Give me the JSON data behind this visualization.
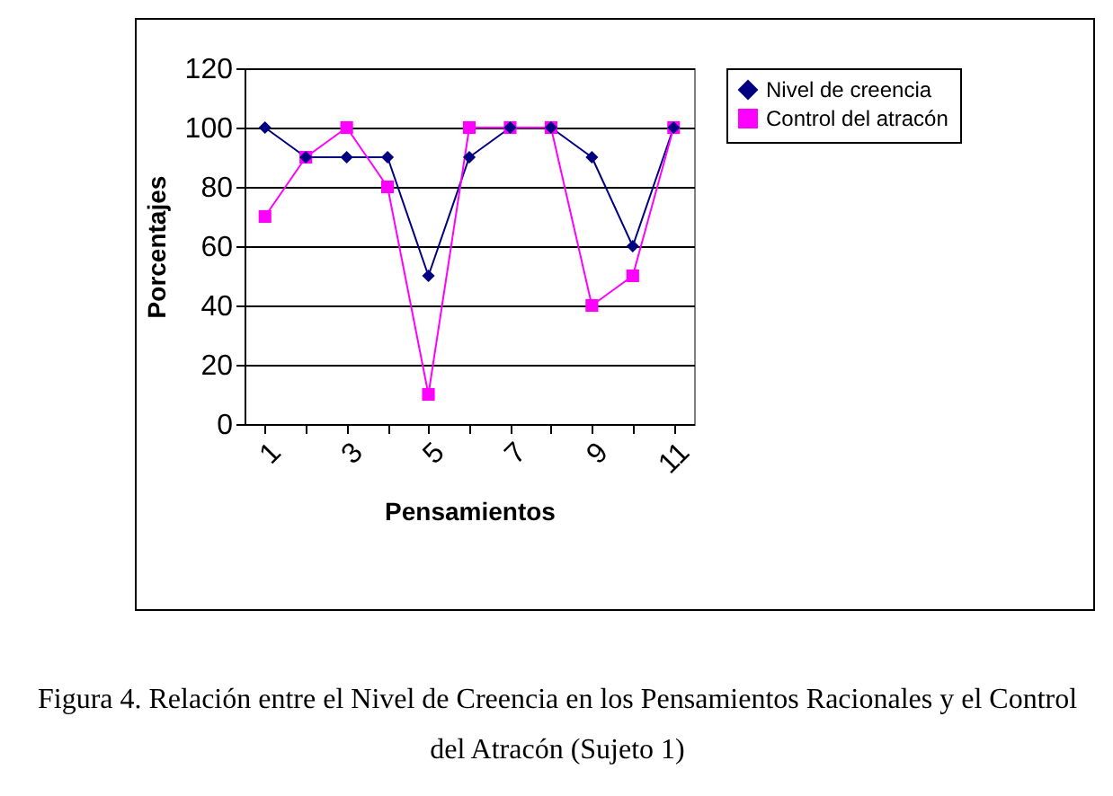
{
  "chart_data": {
    "type": "line",
    "xlabel": "Pensamientos",
    "ylabel": "Porcentajes",
    "categories": [
      "1",
      null,
      "3",
      null,
      "5",
      null,
      "7",
      null,
      "9",
      null,
      "11"
    ],
    "series": [
      {
        "name": "Nivel de creencia",
        "color": "#000080",
        "marker": "diamond",
        "values": [
          100,
          90,
          90,
          90,
          50,
          90,
          100,
          100,
          90,
          60,
          100
        ]
      },
      {
        "name": "Control del atracón",
        "color": "#ff00ff",
        "marker": "square",
        "values": [
          70,
          90,
          100,
          80,
          10,
          100,
          100,
          100,
          40,
          50,
          100
        ]
      }
    ],
    "ylim": [
      0,
      120
    ],
    "yticks": [
      0,
      20,
      40,
      60,
      80,
      100,
      120
    ],
    "grid": "y",
    "legend": "right",
    "annotations": [
      "Figura 4. Relación entre el Nivel de Creencia en los Pensamientos Racionales y el Control del Atracón (Sujeto 1)"
    ]
  }
}
